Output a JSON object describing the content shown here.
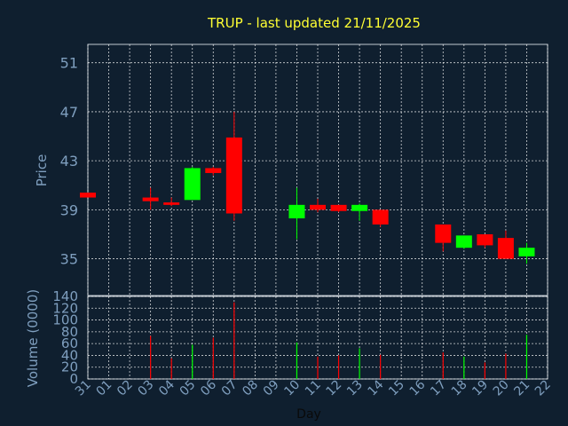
{
  "title": "TRUP - last updated 21/11/2025",
  "colors": {
    "background": "#0f1f2f",
    "up": "#00ff00",
    "down": "#ff0000",
    "grid": "#ffffff",
    "axis_text": "#7f9fbf",
    "title": "#ffff33"
  },
  "chart_data": [
    {
      "type": "candlestick",
      "ylabel": "Price",
      "ylim": [
        32,
        52.5
      ],
      "yticks": [
        35,
        39,
        43,
        47,
        51
      ],
      "grid": true,
      "x": [
        "31",
        "01",
        "02",
        "03",
        "04",
        "05",
        "06",
        "07",
        "08",
        "09",
        "10",
        "11",
        "12",
        "13",
        "14",
        "15",
        "16",
        "17",
        "18",
        "19",
        "20",
        "21",
        "22"
      ],
      "candles": [
        {
          "day": "31",
          "open": 40.4,
          "high": 40.4,
          "low": 40.0,
          "close": 40.0
        },
        {
          "day": "03",
          "open": 40.0,
          "high": 40.8,
          "low": 39.0,
          "close": 39.7
        },
        {
          "day": "04",
          "open": 39.6,
          "high": 40.0,
          "low": 39.3,
          "close": 39.4
        },
        {
          "day": "05",
          "open": 39.8,
          "high": 42.5,
          "low": 39.8,
          "close": 42.4
        },
        {
          "day": "06",
          "open": 42.4,
          "high": 42.5,
          "low": 41.8,
          "close": 42.0
        },
        {
          "day": "07",
          "open": 44.9,
          "high": 47.0,
          "low": 38.1,
          "close": 38.7
        },
        {
          "day": "10",
          "open": 38.3,
          "high": 40.8,
          "low": 36.6,
          "close": 39.4
        },
        {
          "day": "11",
          "open": 39.4,
          "high": 39.9,
          "low": 38.8,
          "close": 39.0
        },
        {
          "day": "12",
          "open": 39.4,
          "high": 39.4,
          "low": 38.8,
          "close": 38.9
        },
        {
          "day": "13",
          "open": 38.9,
          "high": 39.5,
          "low": 38.1,
          "close": 39.4
        },
        {
          "day": "14",
          "open": 39.0,
          "high": 39.0,
          "low": 37.6,
          "close": 37.8
        },
        {
          "day": "17",
          "open": 37.8,
          "high": 37.8,
          "low": 35.6,
          "close": 36.3
        },
        {
          "day": "18",
          "open": 35.9,
          "high": 36.9,
          "low": 35.8,
          "close": 36.9
        },
        {
          "day": "19",
          "open": 37.0,
          "high": 37.0,
          "low": 35.9,
          "close": 36.1
        },
        {
          "day": "20",
          "open": 36.7,
          "high": 37.3,
          "low": 35.0,
          "close": 35.0
        },
        {
          "day": "21",
          "open": 35.2,
          "high": 36.3,
          "low": 34.6,
          "close": 35.9
        }
      ]
    },
    {
      "type": "bar",
      "ylabel": "Volume (0000)",
      "xlabel": "Day",
      "ylim": [
        0,
        140
      ],
      "yticks": [
        0,
        20,
        40,
        60,
        80,
        100,
        120,
        140
      ],
      "grid": true,
      "values": [
        {
          "day": "03",
          "value": 73,
          "color": "down"
        },
        {
          "day": "04",
          "value": 35,
          "color": "down"
        },
        {
          "day": "05",
          "value": 58,
          "color": "up"
        },
        {
          "day": "06",
          "value": 70,
          "color": "down"
        },
        {
          "day": "07",
          "value": 130,
          "color": "down"
        },
        {
          "day": "10",
          "value": 62,
          "color": "up"
        },
        {
          "day": "11",
          "value": 38,
          "color": "down"
        },
        {
          "day": "12",
          "value": 40,
          "color": "down"
        },
        {
          "day": "13",
          "value": 52,
          "color": "up"
        },
        {
          "day": "14",
          "value": 41,
          "color": "down"
        },
        {
          "day": "17",
          "value": 45,
          "color": "down"
        },
        {
          "day": "18",
          "value": 38,
          "color": "up"
        },
        {
          "day": "19",
          "value": 28,
          "color": "down"
        },
        {
          "day": "20",
          "value": 43,
          "color": "down"
        },
        {
          "day": "21",
          "value": 75,
          "color": "up"
        }
      ]
    }
  ]
}
